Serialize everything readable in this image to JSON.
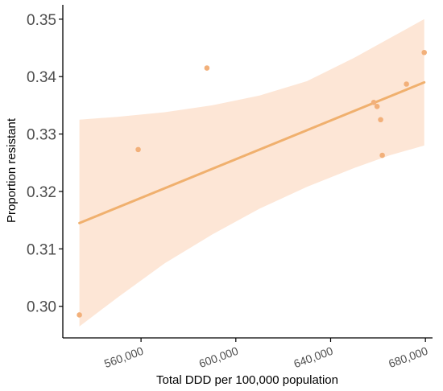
{
  "chart_data": {
    "type": "scatter",
    "title": "",
    "xlabel": "Total DDD per 100,000 population",
    "ylabel": "Proportion resistant",
    "xlim": [
      527000,
      683000
    ],
    "ylim": [
      0.2945,
      0.3525
    ],
    "x_ticks": [
      560000,
      600000,
      640000,
      680000
    ],
    "x_tick_labels": [
      "560,000",
      "600,000",
      "640,000",
      "680,000"
    ],
    "y_ticks": [
      0.3,
      0.31,
      0.32,
      0.33,
      0.34,
      0.35
    ],
    "y_tick_labels": [
      "0.30",
      "0.31",
      "0.32",
      "0.33",
      "0.34",
      "0.35"
    ],
    "grid": false,
    "points": [
      {
        "x": 534000,
        "y": 0.2985
      },
      {
        "x": 558800,
        "y": 0.3273
      },
      {
        "x": 587800,
        "y": 0.3415
      },
      {
        "x": 658200,
        "y": 0.3355
      },
      {
        "x": 659600,
        "y": 0.3348
      },
      {
        "x": 661100,
        "y": 0.3325
      },
      {
        "x": 661800,
        "y": 0.3263
      },
      {
        "x": 672000,
        "y": 0.3387
      },
      {
        "x": 679500,
        "y": 0.3442
      }
    ],
    "trend_line": {
      "x": [
        534000,
        679500
      ],
      "y": [
        0.3145,
        0.339
      ]
    },
    "confidence_band": {
      "x": [
        534000,
        550000,
        570000,
        590000,
        610000,
        630000,
        650000,
        665000,
        679500
      ],
      "upper": [
        0.3325,
        0.333,
        0.3338,
        0.335,
        0.3367,
        0.3392,
        0.3433,
        0.3467,
        0.35
      ],
      "lower": [
        0.2965,
        0.3015,
        0.3075,
        0.3125,
        0.317,
        0.3208,
        0.3241,
        0.3263,
        0.328
      ]
    },
    "colors": {
      "point": "#f2b07a",
      "line": "#f0b06e",
      "band": "#fde6d6",
      "axis": "#000000",
      "tick_text": "#4d4d4d"
    }
  }
}
